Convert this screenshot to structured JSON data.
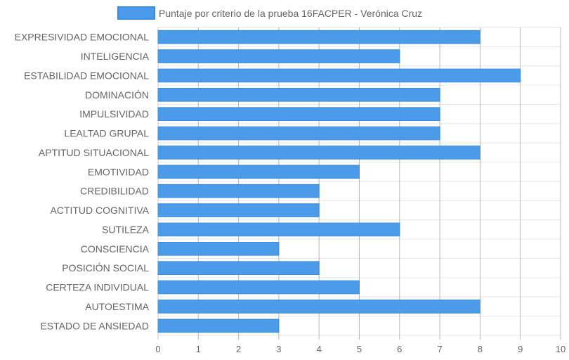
{
  "chart_data": {
    "type": "bar",
    "orientation": "horizontal",
    "title": "",
    "xlabel": "",
    "ylabel": "",
    "xlim": [
      0,
      10
    ],
    "x_ticks": [
      "0",
      "1",
      "2",
      "3",
      "4",
      "5",
      "6",
      "7",
      "8",
      "9",
      "10"
    ],
    "grid": true,
    "legend_position": "top",
    "categories": [
      "EXPRESIVIDAD EMOCIONAL",
      "INTELIGENCIA",
      "ESTABILIDAD EMOCIONAL",
      "DOMINACIÓN",
      "IMPULSIVIDAD",
      "LEALTAD GRUPAL",
      "APTITUD SITUACIONAL",
      "EMOTIVIDAD",
      "CREDIBILIDAD",
      "ACTITUD COGNITIVA",
      "SUTILEZA",
      "CONSCIENCIA",
      "POSICIÓN SOCIAL",
      "CERTEZA INDIVIDUAL",
      "AUTOESTIMA",
      "ESTADO DE ANSIEDAD"
    ],
    "series": [
      {
        "name": "Puntaje por criterio de la prueba 16FACPER - Verónica Cruz",
        "values": [
          8,
          6,
          9,
          7,
          7,
          7,
          8,
          5,
          4,
          4,
          6,
          3,
          4,
          5,
          8,
          3
        ],
        "color": "#4c9be8",
        "border_color": "#3a8ce0"
      }
    ]
  }
}
